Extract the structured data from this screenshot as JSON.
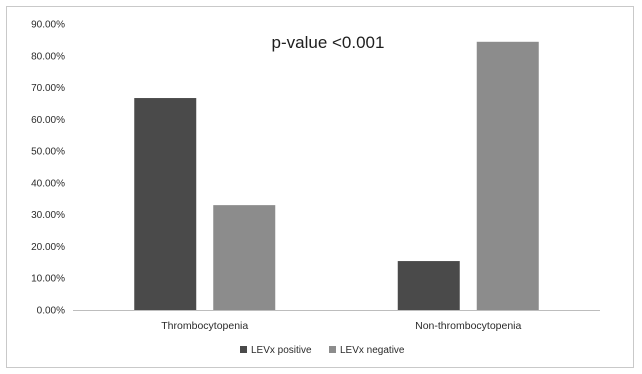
{
  "chart_data": {
    "type": "bar",
    "categories": [
      "Thrombocytopenia",
      "Non-thrombocytopenia"
    ],
    "series": [
      {
        "name": "LEVx positive",
        "values": [
          66.7,
          15.4
        ],
        "color": "#4a4a4a"
      },
      {
        "name": "LEVx negative",
        "values": [
          33.0,
          84.4
        ],
        "color": "#8c8c8c"
      }
    ],
    "ylim": [
      0,
      90
    ],
    "yticks": [
      "0.00%",
      "10.00%",
      "20.00%",
      "30.00%",
      "40.00%",
      "50.00%",
      "60.00%",
      "70.00%",
      "80.00%",
      "90.00%"
    ],
    "ytick_values": [
      0,
      10,
      20,
      30,
      40,
      50,
      60,
      70,
      80,
      90
    ],
    "annotation": "p-value <0.001",
    "legend_position": "bottom",
    "grid": false
  }
}
